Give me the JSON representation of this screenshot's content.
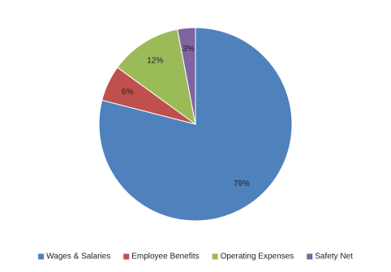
{
  "chart_data": {
    "type": "pie",
    "categories": [
      "Wages & Salaries",
      "Employee Benefits",
      "Operating Expenses",
      "Safety Net"
    ],
    "values": [
      79,
      6,
      12,
      3
    ],
    "value_labels": [
      "79%",
      "6%",
      "12%",
      "3%"
    ],
    "colors": [
      "#4f81bd",
      "#c0504d",
      "#9bbb59",
      "#8064a2"
    ],
    "legend": "bottom"
  }
}
